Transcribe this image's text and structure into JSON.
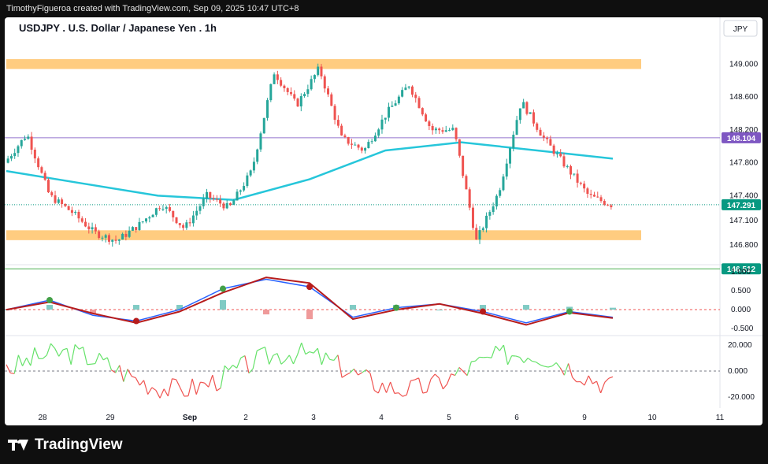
{
  "header": {
    "attribution": "TimothyFigueroa created with TradingView.com, Sep 09, 2025 10:47 UTC+8"
  },
  "footer": {
    "brand": "TradingView"
  },
  "colors": {
    "up": "#26a69a",
    "down": "#ef5350",
    "ma": "#26c6da",
    "zone": "#ffcc80",
    "purple_line": "#9575cd",
    "purple_label": "#7e57c2",
    "green_line": "#4caf50",
    "last_label": "#089981",
    "macd_line": "#2962ff",
    "signal_up": "#43a047",
    "signal_down": "#b71c1c",
    "osc_up": "#66e26a",
    "osc_down": "#ef5350"
  },
  "chart_data": [
    {
      "type": "candlestick",
      "title": "USDJPY . U.S. Dollar / Japanese Yen . 1h",
      "currency": "JPY",
      "x": {
        "ticks": [
          "28",
          "29",
          "Sep",
          "2",
          "3",
          "4",
          "5",
          "6",
          "9",
          "10",
          "11"
        ]
      },
      "y": {
        "min": 146.6,
        "max": 149.3,
        "ticks": [
          "149.000",
          "148.600",
          "148.200",
          "147.800",
          "147.400",
          "147.100",
          "146.800"
        ]
      },
      "price_labels": [
        {
          "value": 148.104,
          "text": "148.104",
          "kind": "horizontal line"
        },
        {
          "value": 147.291,
          "text": "147.291",
          "kind": "last price"
        },
        {
          "value": 146.512,
          "text": "146.512",
          "kind": "horizontal line"
        }
      ],
      "zones": [
        {
          "from": 148.94,
          "to": 149.06
        },
        {
          "from": 146.86,
          "to": 146.98
        }
      ],
      "price_path": [
        [
          "28",
          147.8
        ],
        [
          "28",
          148.15
        ],
        [
          "28",
          147.4
        ],
        [
          "28",
          147.2
        ],
        [
          "29",
          146.95
        ],
        [
          "29",
          146.85
        ],
        [
          "29",
          147.05
        ],
        [
          "Sep",
          147.3
        ],
        [
          "Sep",
          147.0
        ],
        [
          "2",
          147.4
        ],
        [
          "2",
          147.25
        ],
        [
          "2",
          147.7
        ],
        [
          "3",
          148.9
        ],
        [
          "3",
          148.5
        ],
        [
          "3",
          148.95
        ],
        [
          "4",
          148.1
        ],
        [
          "4",
          147.95
        ],
        [
          "4",
          148.4
        ],
        [
          "5",
          148.75
        ],
        [
          "5",
          148.2
        ],
        [
          "5",
          148.2
        ],
        [
          "6",
          146.85
        ],
        [
          "6",
          147.45
        ],
        [
          "6",
          148.55
        ],
        [
          "6",
          148.1
        ],
        [
          "9",
          147.75
        ],
        [
          "9",
          147.4
        ],
        [
          "9",
          147.29
        ]
      ],
      "moving_average": {
        "color": "ma",
        "path": [
          147.7,
          147.55,
          147.4,
          147.35,
          147.6,
          147.95,
          148.05,
          147.95,
          147.85
        ]
      }
    },
    {
      "type": "macd",
      "y": {
        "min": -0.6,
        "max": 1.1,
        "ticks": [
          "1.000",
          "0.500",
          "0.000",
          "-0.500"
        ]
      },
      "macd": [
        0.0,
        0.25,
        -0.15,
        -0.3,
        0.0,
        0.55,
        0.8,
        0.6,
        -0.2,
        0.05,
        0.15,
        -0.05,
        -0.35,
        -0.05,
        -0.2
      ],
      "signal": [
        0.0,
        0.2,
        -0.1,
        -0.35,
        -0.05,
        0.45,
        0.85,
        0.7,
        -0.25,
        0.0,
        0.15,
        -0.1,
        -0.4,
        -0.08,
        -0.22
      ]
    },
    {
      "type": "oscillator",
      "y": {
        "min": -25,
        "max": 25,
        "ticks": [
          "20.000",
          "0.000",
          "-20.000"
        ]
      }
    }
  ]
}
